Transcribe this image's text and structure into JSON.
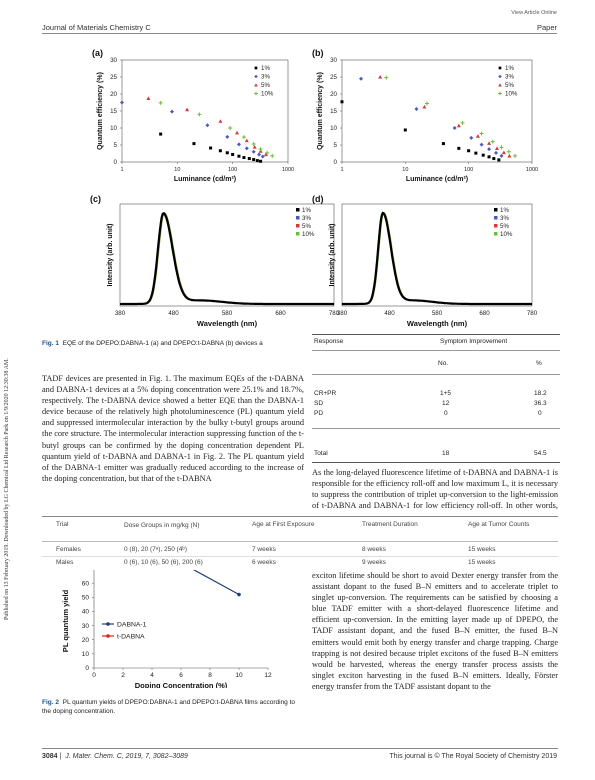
{
  "header": {
    "view_article": "View Article Online",
    "journal": "Journal of Materials Chemistry C",
    "section": "Paper"
  },
  "sidebar_text": "Published on 13 February 2019. Downloaded by LG Chemical Ltd Research Park on 1/9/2020 12:30:38 AM.",
  "figure1": {
    "panels": [
      {
        "label": "(a)",
        "ylabel": "Quantum efficiency (%)",
        "xlabel": "Luminance (cd/m²)"
      },
      {
        "label": "(b)",
        "ylabel": "Quantum efficiency (%)",
        "xlabel": "Luminance (cd/m²)"
      },
      {
        "label": "(c)",
        "ylabel": "Intensity (arb. unit)",
        "xlabel": "Wavelength (nm)"
      },
      {
        "label": "(d)",
        "ylabel": "Intensity (arb. unit)",
        "xlabel": "Wavelength (nm)"
      }
    ],
    "caption_label": "Fig. 1",
    "caption_text": "EQE of the DPEPO:DABNA-1 (a) and DPEPO:t-DABNA (b) devices a"
  },
  "chart_data": [
    {
      "type": "scatter",
      "panel": "(a)",
      "xlabel": "Luminance (cd/m²)",
      "ylabel": "Quantum efficiency (%)",
      "x_scale": "log",
      "xlim": [
        1,
        1000
      ],
      "ylim": [
        0,
        30
      ],
      "xticks": [
        "1",
        "10",
        "100",
        "1000"
      ],
      "yticks": [
        "0",
        "5",
        "10",
        "15",
        "20",
        "25",
        "30"
      ],
      "legend_position": "top-right",
      "series": [
        {
          "name": "1%",
          "color": "#000000",
          "marker": "square",
          "points": [
            [
              5,
              8.2
            ],
            [
              20,
              5.4
            ],
            [
              40,
              4.1
            ],
            [
              60,
              3.3
            ],
            [
              80,
              2.7
            ],
            [
              100,
              2.2
            ],
            [
              130,
              1.7
            ],
            [
              160,
              1.3
            ],
            [
              200,
              1.0
            ],
            [
              240,
              0.7
            ],
            [
              280,
              0.4
            ],
            [
              320,
              0.2
            ]
          ]
        },
        {
          "name": "3%",
          "color": "#4a5bbd",
          "marker": "diamond",
          "points": [
            [
              1,
              17.5
            ],
            [
              8,
              14.8
            ],
            [
              35,
              10.8
            ],
            [
              80,
              7.4
            ],
            [
              130,
              5.2
            ],
            [
              180,
              4.0
            ],
            [
              240,
              3.0
            ],
            [
              300,
              2.2
            ],
            [
              350,
              1.6
            ]
          ]
        },
        {
          "name": "5%",
          "color": "#d13b3b",
          "marker": "triangle",
          "points": [
            [
              3,
              18.7
            ],
            [
              15,
              15.4
            ],
            [
              60,
              12.0
            ],
            [
              120,
              8.6
            ],
            [
              180,
              6.3
            ],
            [
              250,
              4.4
            ],
            [
              320,
              3.2
            ],
            [
              400,
              2.2
            ]
          ]
        },
        {
          "name": "10%",
          "color": "#6dbb3c",
          "marker": "cross",
          "points": [
            [
              5,
              17.4
            ],
            [
              25,
              14.0
            ],
            [
              90,
              10.0
            ],
            [
              160,
              7.3
            ],
            [
              240,
              5.3
            ],
            [
              320,
              3.8
            ],
            [
              420,
              2.7
            ],
            [
              520,
              1.8
            ]
          ]
        }
      ]
    },
    {
      "type": "scatter",
      "panel": "(b)",
      "xlabel": "Luminance (cd/m²)",
      "ylabel": "Quantum efficiency (%)",
      "x_scale": "log",
      "xlim": [
        1,
        1000
      ],
      "ylim": [
        0,
        30
      ],
      "xticks": [
        "1",
        "10",
        "100",
        "1000"
      ],
      "yticks": [
        "0",
        "5",
        "10",
        "15",
        "20",
        "25",
        "30"
      ],
      "legend_position": "top-right",
      "series": [
        {
          "name": "1%",
          "color": "#000000",
          "marker": "square",
          "points": [
            [
              1,
              17.7
            ],
            [
              10,
              9.4
            ],
            [
              40,
              5.4
            ],
            [
              70,
              4.0
            ],
            [
              100,
              3.3
            ],
            [
              130,
              2.6
            ],
            [
              170,
              2.0
            ],
            [
              210,
              1.5
            ],
            [
              250,
              1.0
            ],
            [
              300,
              0.6
            ]
          ]
        },
        {
          "name": "3%",
          "color": "#4a5bbd",
          "marker": "diamond",
          "points": [
            [
              2,
              24.5
            ],
            [
              15,
              15.6
            ],
            [
              60,
              10.0
            ],
            [
              110,
              7.1
            ],
            [
              160,
              5.1
            ],
            [
              210,
              3.8
            ],
            [
              270,
              2.7
            ],
            [
              330,
              1.8
            ]
          ]
        },
        {
          "name": "5%",
          "color": "#d13b3b",
          "marker": "triangle",
          "points": [
            [
              4,
              25.0
            ],
            [
              20,
              16.2
            ],
            [
              70,
              10.7
            ],
            [
              140,
              7.6
            ],
            [
              210,
              5.5
            ],
            [
              280,
              4.0
            ],
            [
              360,
              2.8
            ],
            [
              440,
              1.8
            ]
          ]
        },
        {
          "name": "10%",
          "color": "#6dbb3c",
          "marker": "cross",
          "points": [
            [
              5,
              24.8
            ],
            [
              22,
              17.2
            ],
            [
              80,
              11.5
            ],
            [
              160,
              8.4
            ],
            [
              240,
              6.0
            ],
            [
              330,
              4.3
            ],
            [
              430,
              3.0
            ],
            [
              540,
              1.8
            ]
          ]
        }
      ]
    },
    {
      "type": "line",
      "panel": "(c)",
      "xlabel": "Wavelength (nm)",
      "ylabel": "Intensity (arb. unit)",
      "xlim": [
        380,
        780
      ],
      "xticks": [
        "380",
        "480",
        "580",
        "680",
        "780"
      ],
      "legend_position": "top-right",
      "peak_nm": 461,
      "series": [
        {
          "name": "1%",
          "color": "#000000"
        },
        {
          "name": "3%",
          "color": "#4a5bbd"
        },
        {
          "name": "5%",
          "color": "#d13b3b"
        },
        {
          "name": "10%",
          "color": "#6dbb3c"
        }
      ]
    },
    {
      "type": "line",
      "panel": "(d)",
      "xlabel": "Wavelength (nm)",
      "ylabel": "Intensity (arb. unit)",
      "xlim": [
        380,
        780
      ],
      "xticks": [
        "380",
        "480",
        "580",
        "680",
        "780"
      ],
      "legend_position": "top-right",
      "peak_nm": 466,
      "series": [
        {
          "name": "1%",
          "color": "#000000"
        },
        {
          "name": "3%",
          "color": "#4a5bbd"
        },
        {
          "name": "5%",
          "color": "#d13b3b"
        },
        {
          "name": "10%",
          "color": "#6dbb3c"
        }
      ]
    },
    {
      "type": "line",
      "panel": "fig2",
      "xlabel": "Doping Concentration (%)",
      "ylabel": "PL quantum yield",
      "xlim": [
        0,
        12
      ],
      "ylim": [
        0,
        75
      ],
      "xticks": [
        "0",
        "2",
        "4",
        "6",
        "8",
        "10",
        "12"
      ],
      "yticks": [
        "0",
        "10",
        "20",
        "30",
        "40",
        "50",
        "60",
        "70"
      ],
      "legend_position": "center-left",
      "series": [
        {
          "name": "DABNA-1",
          "color": "#1f3c78",
          "x": [
            5,
            10
          ],
          "y": [
            80,
            52
          ]
        },
        {
          "name": "t-DABNA",
          "color": "#e02020",
          "x": [
            5,
            10
          ],
          "y": [
            84,
            75
          ]
        }
      ]
    }
  ],
  "response_table": {
    "headers": [
      "Response",
      "Symptom Improvement"
    ],
    "subheaders": [
      "No.",
      "%"
    ],
    "rows": [
      [
        "CR+PR",
        "1+5",
        "18.2"
      ],
      [
        "SD",
        "12",
        "36.3"
      ],
      [
        "PD",
        "0",
        "0"
      ]
    ],
    "total": [
      "Total",
      "18",
      "54.5"
    ]
  },
  "trial_table": {
    "headers": [
      "Trial",
      "Dose Groups in mg/kg (N)",
      "Age at First Exposure",
      "Treatment Duration",
      "Age at Tumor Counts"
    ],
    "rows": [
      [
        "Females",
        "0 (8), 20 (7ᵃ), 250 (4ᵇ)",
        "7 weeks",
        "8 weeks",
        "15 weeks"
      ],
      [
        "Males",
        "0 (6), 10 (6), 50 (6), 200 (6)",
        "6 weeks",
        "9 weeks",
        "15 weeks"
      ]
    ]
  },
  "body_left": "TADF devices are presented in Fig. 1. The maximum EQEs of the t-DABNA and DABNA-1 devices at a 5% doping concentration were 25.1% and 18.7%, respectively. The t-DABNA device showed a better EQE than the DABNA-1 device because of the relatively high photoluminescence (PL) quantum yield and suppressed intermolecular interaction by the bulky t-butyl groups around the core structure. The intermolecular interaction suppressing function of the t-butyl groups can be confirmed by the doping concentration dependent PL quantum yield of t-DABNA and DABNA-1 in Fig. 2. The PL quantum yield of the DABNA-1 emitter was gradually reduced according to the increase of the doping concentration, but that of the t-DABNA",
  "body_right_top": "As the long-delayed fluorescence lifetime of t-DABNA and DABNA-1 is responsible for the efficiency roll-off and low maximum L, it is necessary to suppress the contribution of triplet up-conversion to the light-emission of t-DABNA and DABNA-1 for low efficiency roll-off. In other words, singlet excitons should be harvested further, but triplet excitons should be deactivated. This can be",
  "body_right_bottom": "exciton lifetime should be short to avoid Dexter energy transfer from the assistant dopant to the fused B–N emitters and to accelerate triplet to singlet up-conversion. The requirements can be satisfied by choosing a blue TADF emitter with a short-delayed fluorescence lifetime and efficient up-conversion. In the emitting layer made up of DPEPO, the TADF assistant dopant, and the fused B–N emitter, the fused B–N emitters would emit both by energy transfer and charge trapping. Charge trapping is not desired because triplet excitons of the fused B–N emitters would be harvested, whereas the energy transfer process assists the singlet exciton harvesting in the fused B–N emitters. Ideally, Förster energy transfer from the TADF assistant dopant to the",
  "figure2": {
    "caption_label": "Fig. 2",
    "caption_text": "PL quantum yields of DPEPO:DABNA-1 and DPEPO:t-DABNA films according to the doping concentration."
  },
  "footer": {
    "page": "3084",
    "citation": "J. Mater. Chem. C, 2019, 7, 3082–3089",
    "copyright": "This journal is © The Royal Society of Chemistry 2019"
  }
}
